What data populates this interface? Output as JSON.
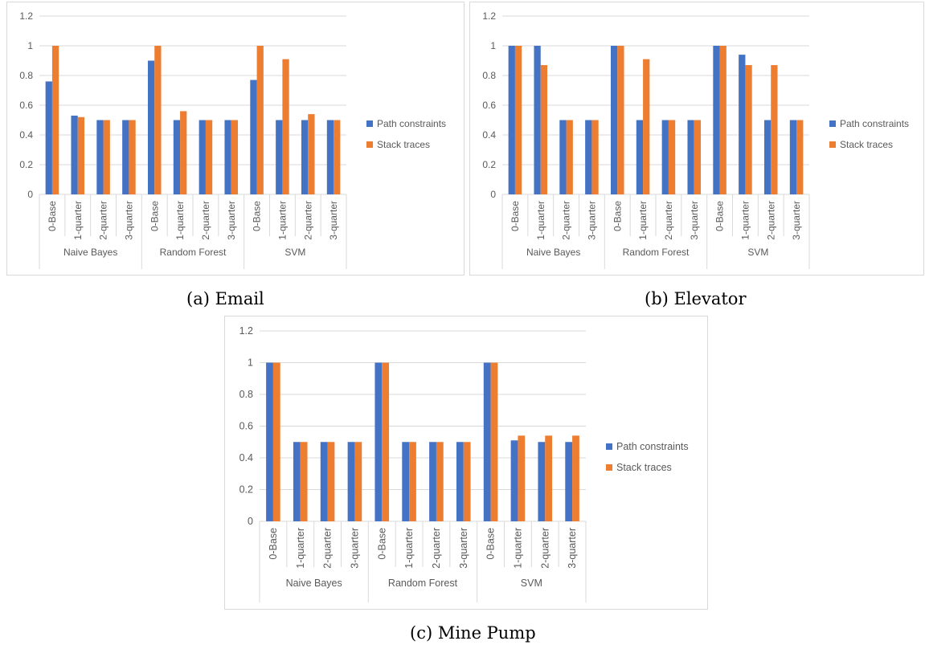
{
  "colors": {
    "path": "#4472c4",
    "stack": "#ed7d31",
    "grid": "#d9d9d9",
    "text": "#595959"
  },
  "captions": [
    "(a) Email",
    "(b) Elevator",
    "(c) Mine Pump"
  ],
  "chart_data": [
    {
      "type": "bar",
      "categories": [
        "0-Base",
        "1-quarter",
        "2-quarter",
        "3-quarter",
        "0-Base",
        "1-quarter",
        "2-quarter",
        "3-quarter",
        "0-Base",
        "1-quarter",
        "2-quarter",
        "3-quarter"
      ],
      "groups": [
        {
          "label": "Naive Bayes",
          "count": 4
        },
        {
          "label": "Random Forest",
          "count": 4
        },
        {
          "label": "SVM",
          "count": 4
        }
      ],
      "series": [
        {
          "name": "Path constraints",
          "values": [
            0.76,
            0.53,
            0.5,
            0.5,
            0.9,
            0.5,
            0.5,
            0.5,
            0.77,
            0.5,
            0.5,
            0.5
          ]
        },
        {
          "name": "Stack traces",
          "values": [
            1.0,
            0.52,
            0.5,
            0.5,
            1.0,
            0.56,
            0.5,
            0.5,
            1.0,
            0.91,
            0.54,
            0.5
          ]
        }
      ],
      "yticks": [
        "0",
        "0.2",
        "0.4",
        "0.6",
        "0.8",
        "1",
        "1.2"
      ],
      "ylim": [
        0,
        1.2
      ],
      "grid": true,
      "legend": "right"
    },
    {
      "type": "bar",
      "categories": [
        "0-Base",
        "1-quarter",
        "2-quarter",
        "3-quarter",
        "0-Base",
        "1-quarter",
        "2-quarter",
        "3-quarter",
        "0-Base",
        "1-quarter",
        "2-quarter",
        "3-quarter"
      ],
      "groups": [
        {
          "label": "Naive Bayes",
          "count": 4
        },
        {
          "label": "Random Forest",
          "count": 4
        },
        {
          "label": "SVM",
          "count": 4
        }
      ],
      "series": [
        {
          "name": "Path constraints",
          "values": [
            1.0,
            1.0,
            0.5,
            0.5,
            1.0,
            0.5,
            0.5,
            0.5,
            1.0,
            0.94,
            0.5,
            0.5
          ]
        },
        {
          "name": "Stack traces",
          "values": [
            1.0,
            0.87,
            0.5,
            0.5,
            1.0,
            0.91,
            0.5,
            0.5,
            1.0,
            0.87,
            0.87,
            0.5
          ]
        }
      ],
      "yticks": [
        "0",
        "0.2",
        "0.4",
        "0.6",
        "0.8",
        "1",
        "1.2"
      ],
      "ylim": [
        0,
        1.2
      ],
      "grid": true,
      "legend": "right"
    },
    {
      "type": "bar",
      "categories": [
        "0-Base",
        "1-quarter",
        "2-quarter",
        "3-quarter",
        "0-Base",
        "1-quarter",
        "2-quarter",
        "3-quarter",
        "0-Base",
        "1-quarter",
        "2-quarter",
        "3-quarter"
      ],
      "groups": [
        {
          "label": "Naive Bayes",
          "count": 4
        },
        {
          "label": "Random Forest",
          "count": 4
        },
        {
          "label": "SVM",
          "count": 4
        }
      ],
      "series": [
        {
          "name": "Path constraints",
          "values": [
            1.0,
            0.5,
            0.5,
            0.5,
            1.0,
            0.5,
            0.5,
            0.5,
            1.0,
            0.51,
            0.5,
            0.5
          ]
        },
        {
          "name": "Stack traces",
          "values": [
            1.0,
            0.5,
            0.5,
            0.5,
            1.0,
            0.5,
            0.5,
            0.5,
            1.0,
            0.54,
            0.54,
            0.54
          ]
        }
      ],
      "yticks": [
        "0",
        "0.2",
        "0.4",
        "0.6",
        "0.8",
        "1",
        "1.2"
      ],
      "ylim": [
        0,
        1.2
      ],
      "grid": true,
      "legend": "right"
    }
  ]
}
